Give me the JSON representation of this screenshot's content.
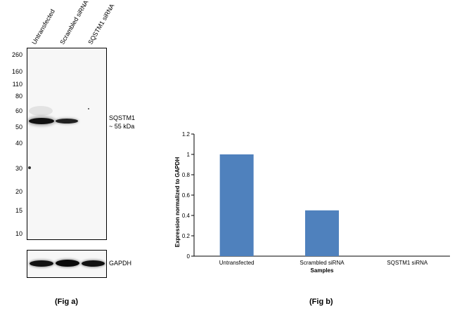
{
  "fig_a": {
    "lanes": [
      "Untransfected",
      "Scrambled siRNA",
      "SQSTM1 siRNA"
    ],
    "mw_markers": [
      "260",
      "160",
      "110",
      "80",
      "60",
      "50",
      "40",
      "30",
      "20",
      "15",
      "10"
    ],
    "target_label": "SQSTM1",
    "target_size": "~ 55 kDa",
    "loading_control": "GAPDH",
    "caption": "(Fig a)"
  },
  "fig_b": {
    "caption": "(Fig b)"
  },
  "chart_data": {
    "type": "bar",
    "categories": [
      "Untransfected",
      "Scrambled siRNA",
      "SQSTM1 siRNA"
    ],
    "values": [
      1.0,
      0.45,
      0.0
    ],
    "title": "",
    "xlabel": "Samples",
    "ylabel": "Expression  normalized to GAPDH",
    "ylim": [
      0,
      1.2
    ],
    "yticks": [
      "0",
      "0.2",
      "0.4",
      "0.6",
      "0.8",
      "1",
      "1.2"
    ],
    "bar_color": "#4f81bd",
    "grid": false,
    "legend": "none"
  }
}
